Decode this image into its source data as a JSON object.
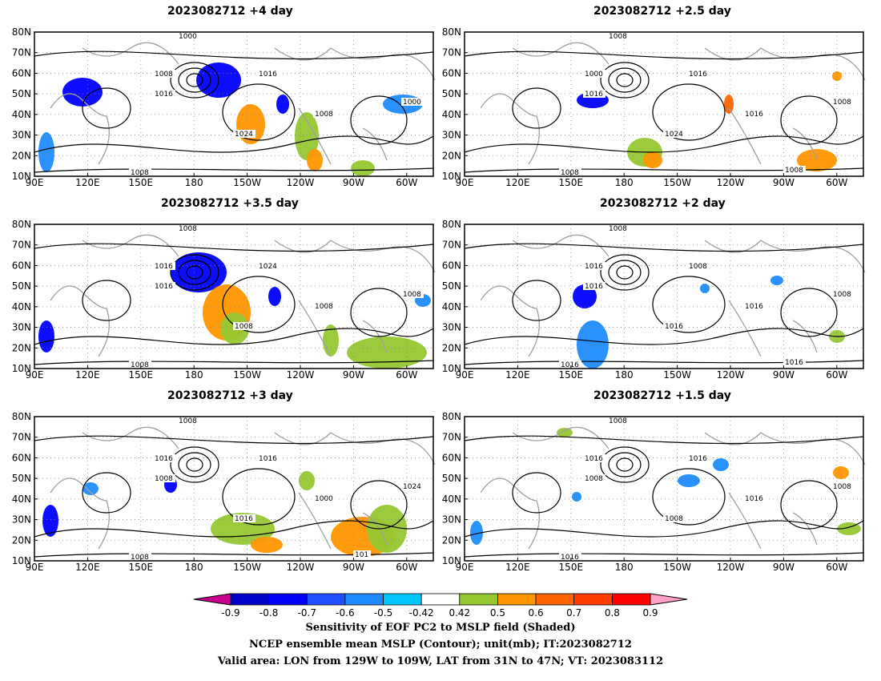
{
  "panels": [
    {
      "title": "2023082712 +4 day"
    },
    {
      "title": "2023082712 +2.5 day"
    },
    {
      "title": "2023082712 +3.5 day"
    },
    {
      "title": "2023082712 +2 day"
    },
    {
      "title": "2023082712 +3 day"
    },
    {
      "title": "2023082712 +1.5 day"
    }
  ],
  "axes": {
    "lat_ticks": [
      "80N",
      "70N",
      "60N",
      "50N",
      "40N",
      "30N",
      "20N",
      "10N"
    ],
    "lon_ticks": [
      "90E",
      "120E",
      "150E",
      "180",
      "150W",
      "120W",
      "90W",
      "60W"
    ]
  },
  "colorbar": {
    "colors": [
      "#c8008c",
      "#0000c8",
      "#0000ff",
      "#1e50ff",
      "#1e8cff",
      "#00c8ff",
      "#ffffff",
      "#96c832",
      "#ff9600",
      "#ff6400",
      "#ff3c00",
      "#ff0000",
      "#ffa0c8"
    ],
    "labels": [
      "-0.9",
      "-0.8",
      "-0.7",
      "-0.6",
      "-0.5",
      "-0.42",
      "0.42",
      "0.5",
      "0.6",
      "0.7",
      "0.8",
      "0.9"
    ]
  },
  "captions": {
    "line1": "Sensitivity of EOF PC2 to MSLP field (Shaded)",
    "line2": "NCEP ensemble mean MSLP (Contour); unit(mb); IT:2023082712",
    "line3": "Valid area: LON from 129W to 109W, LAT from 31N to 47N; VT: 2023083112"
  },
  "contour_labels": {
    "p0": [
      "1000",
      "1008",
      "1016",
      "1016",
      "1024",
      "1000",
      "1008",
      "1008"
    ],
    "p1": [
      "1008",
      "1000",
      "1016",
      "1016",
      "1024",
      "1008",
      "1016",
      "1008",
      "1008"
    ],
    "p2": [
      "1008",
      "1016",
      "1016",
      "1024",
      "1008",
      "1008",
      "1008",
      "1008"
    ],
    "p3": [
      "1008",
      "1016",
      "1016",
      "1008",
      "1016",
      "1008",
      "1016",
      "1016",
      "1016"
    ],
    "p4": [
      "1008",
      "1016",
      "1008",
      "1016",
      "1016",
      "1024",
      "1000",
      "1008",
      "101"
    ],
    "p5": [
      "1008",
      "1016",
      "1008",
      "1016",
      "1008",
      "1008",
      "1016",
      "1016"
    ]
  },
  "colors": {
    "coast": "#a0a0a0",
    "contour": "#000000"
  }
}
